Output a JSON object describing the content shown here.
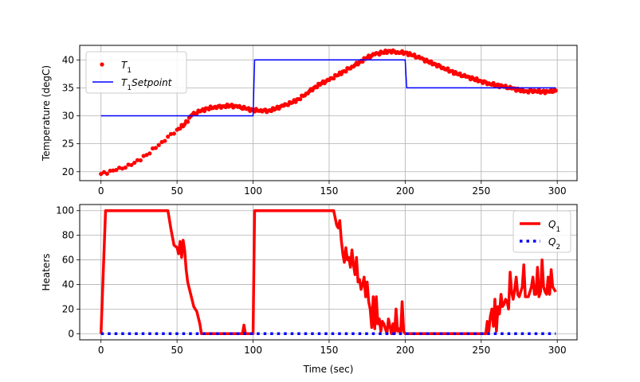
{
  "colors": {
    "t1": "#ff0000",
    "setpoint": "#0000ff",
    "q1": "#ff0000",
    "q2": "#0000ff",
    "grid": "#b0b0b0"
  },
  "chart_data": [
    {
      "type": "scatter+line",
      "title": "",
      "xlabel": "",
      "ylabel": "Temperature (degC)",
      "xlim": [
        -14,
        313
      ],
      "ylim": [
        18.4,
        42.6
      ],
      "xticks": [
        0,
        50,
        100,
        150,
        200,
        250,
        300
      ],
      "yticks": [
        20,
        25,
        30,
        35,
        40
      ],
      "grid": true,
      "legend": {
        "placement": "top-left",
        "entries": [
          {
            "main": "T",
            "sub": "1",
            "rest": ""
          },
          {
            "main": "T",
            "sub": "1",
            "rest": "Setpoint"
          }
        ]
      },
      "series": [
        {
          "name": "T1",
          "style": "markers",
          "x": [
            0,
            10,
            20,
            30,
            40,
            50,
            55,
            60,
            65,
            70,
            75,
            80,
            85,
            90,
            95,
            100,
            105,
            110,
            115,
            120,
            125,
            130,
            135,
            140,
            145,
            150,
            155,
            160,
            165,
            170,
            175,
            180,
            185,
            190,
            195,
            200,
            205,
            210,
            215,
            220,
            225,
            230,
            235,
            240,
            245,
            250,
            255,
            260,
            265,
            270,
            275,
            280,
            285,
            290,
            295,
            299
          ],
          "y": [
            19.6,
            20.3,
            21.2,
            23.0,
            25.3,
            27.5,
            28.5,
            30.2,
            30.8,
            31.3,
            31.6,
            31.7,
            31.8,
            31.6,
            31.3,
            31.0,
            31.0,
            30.9,
            31.3,
            31.8,
            32.3,
            33.0,
            34.0,
            35.0,
            35.8,
            36.4,
            37.2,
            38.0,
            38.8,
            39.6,
            40.4,
            41.0,
            41.3,
            41.6,
            41.4,
            41.3,
            40.8,
            40.3,
            39.7,
            39.2,
            38.6,
            38.0,
            37.4,
            37.0,
            36.6,
            36.2,
            35.8,
            35.5,
            35.2,
            34.9,
            34.6,
            34.4,
            34.5,
            34.3,
            34.3,
            34.5
          ]
        },
        {
          "name": "T1 Setpoint",
          "style": "line",
          "x": [
            0,
            100,
            101,
            200,
            201,
            299
          ],
          "y": [
            30,
            30,
            40,
            40,
            35,
            35
          ]
        }
      ]
    },
    {
      "type": "line",
      "title": "",
      "xlabel": "Time (sec)",
      "ylabel": "Heaters",
      "xlim": [
        -14,
        313
      ],
      "ylim": [
        -5,
        105
      ],
      "xticks": [
        0,
        50,
        100,
        150,
        200,
        250,
        300
      ],
      "yticks": [
        0,
        20,
        40,
        60,
        80,
        100
      ],
      "grid": true,
      "legend": {
        "placement": "top-right",
        "entries": [
          {
            "main": "Q",
            "sub": "1",
            "rest": ""
          },
          {
            "main": "Q",
            "sub": "2",
            "rest": ""
          }
        ]
      },
      "series": [
        {
          "name": "Q1",
          "style": "line",
          "x": [
            0,
            3,
            44,
            46,
            48,
            50,
            51,
            52,
            53,
            54,
            55,
            56,
            57,
            59,
            61,
            63,
            65,
            66,
            70,
            80,
            93,
            94,
            95,
            99,
            100,
            101,
            152,
            153,
            155,
            156,
            157,
            158,
            159,
            160,
            161,
            162,
            163,
            164,
            165,
            166,
            167,
            168,
            169,
            170,
            171,
            172,
            173,
            174,
            175,
            176,
            177,
            178,
            179,
            180,
            181,
            182,
            183,
            184,
            185,
            186,
            187,
            188,
            189,
            190,
            191,
            192,
            193,
            194,
            195,
            196,
            197,
            198,
            199,
            200,
            201,
            210,
            220,
            230,
            240,
            250,
            253,
            254,
            255,
            256,
            257,
            258,
            259,
            260,
            261,
            262,
            263,
            264,
            265,
            266,
            267,
            268,
            269,
            270,
            271,
            272,
            273,
            274,
            275,
            276,
            277,
            278,
            279,
            280,
            281,
            282,
            283,
            284,
            285,
            286,
            287,
            288,
            289,
            290,
            291,
            292,
            293,
            294,
            295,
            296,
            297,
            298,
            299
          ],
          "y": [
            0,
            100,
            100,
            85,
            72,
            70,
            65,
            75,
            62,
            76,
            68,
            52,
            42,
            32,
            22,
            18,
            8,
            0,
            0,
            0,
            0,
            7,
            0,
            0,
            0,
            100,
            100,
            100,
            88,
            86,
            92,
            76,
            65,
            58,
            70,
            60,
            62,
            54,
            68,
            56,
            48,
            62,
            42,
            44,
            36,
            40,
            46,
            30,
            42,
            26,
            20,
            5,
            30,
            4,
            30,
            8,
            12,
            2,
            10,
            8,
            4,
            0,
            12,
            6,
            0,
            8,
            0,
            20,
            2,
            4,
            0,
            26,
            2,
            0,
            0,
            0,
            0,
            0,
            0,
            0,
            0,
            10,
            2,
            14,
            20,
            6,
            28,
            2,
            22,
            16,
            32,
            22,
            24,
            28,
            26,
            20,
            50,
            34,
            28,
            36,
            46,
            32,
            30,
            34,
            38,
            56,
            30,
            30,
            30,
            34,
            38,
            46,
            32,
            32,
            54,
            30,
            34,
            60,
            38,
            34,
            32,
            46,
            32,
            52,
            38,
            36,
            34
          ]
        },
        {
          "name": "Q2",
          "style": "dotted",
          "x": [
            0,
            299
          ],
          "y": [
            0,
            0
          ]
        }
      ]
    }
  ]
}
